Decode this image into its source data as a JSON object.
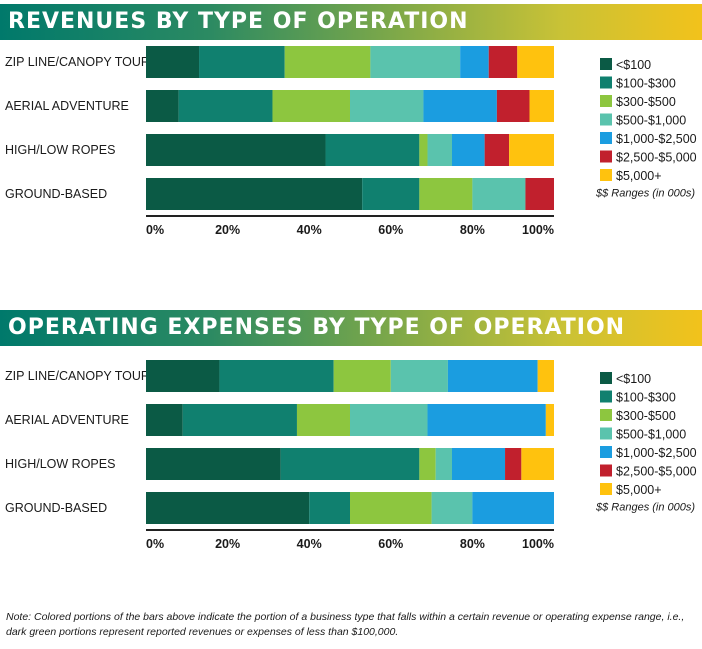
{
  "chart_data": [
    {
      "type": "bar",
      "orientation": "horizontal",
      "stacked": true,
      "title": "REVENUES BY TYPE OF OPERATION",
      "categories": [
        "ZIP LINE/CANOPY TOUR",
        "AERIAL ADVENTURE",
        "HIGH/LOW ROPES",
        "GROUND-BASED"
      ],
      "series": [
        {
          "name": "<$100",
          "color": "#0b5a45",
          "values": [
            13,
            8,
            44,
            53
          ]
        },
        {
          "name": "$100-$300",
          "color": "#10806f",
          "values": [
            21,
            23,
            23,
            14
          ]
        },
        {
          "name": "$300-$500",
          "color": "#8dc63f",
          "values": [
            21,
            19,
            2,
            13
          ]
        },
        {
          "name": "$500-$1,000",
          "color": "#5ac3ad",
          "values": [
            22,
            18,
            6,
            13
          ]
        },
        {
          "name": "$1,000-$2,500",
          "color": "#1b9de0",
          "values": [
            7,
            18,
            8,
            0
          ]
        },
        {
          "name": "$2,500-$5,000",
          "color": "#c1202d",
          "values": [
            7,
            8,
            6,
            7
          ]
        },
        {
          "name": "$5,000+",
          "color": "#ffc20e",
          "values": [
            9,
            6,
            11,
            0
          ]
        }
      ],
      "x_ticks": [
        "0%",
        "20%",
        "40%",
        "60%",
        "80%",
        "100%"
      ],
      "xlim": [
        0,
        100
      ],
      "legend_note": "$$ Ranges (in 000s)",
      "legend_position": "right"
    },
    {
      "type": "bar",
      "orientation": "horizontal",
      "stacked": true,
      "title": "OPERATING EXPENSES BY TYPE OF OPERATION",
      "categories": [
        "ZIP LINE/CANOPY TOUR",
        "AERIAL ADVENTURE",
        "HIGH/LOW ROPES",
        "GROUND-BASED"
      ],
      "series": [
        {
          "name": "<$100",
          "color": "#0b5a45",
          "values": [
            18,
            9,
            33,
            40
          ]
        },
        {
          "name": "$100-$300",
          "color": "#10806f",
          "values": [
            28,
            28,
            34,
            10
          ]
        },
        {
          "name": "$300-$500",
          "color": "#8dc63f",
          "values": [
            14,
            13,
            4,
            20
          ]
        },
        {
          "name": "$500-$1,000",
          "color": "#5ac3ad",
          "values": [
            14,
            19,
            4,
            10
          ]
        },
        {
          "name": "$1,000-$2,500",
          "color": "#1b9de0",
          "values": [
            22,
            29,
            13,
            20
          ]
        },
        {
          "name": "$2,500-$5,000",
          "color": "#c1202d",
          "values": [
            0,
            0,
            4,
            0
          ]
        },
        {
          "name": "$5,000+",
          "color": "#ffc20e",
          "values": [
            4,
            2,
            8,
            0
          ]
        }
      ],
      "x_ticks": [
        "0%",
        "20%",
        "40%",
        "60%",
        "80%",
        "100%"
      ],
      "xlim": [
        0,
        100
      ],
      "legend_note": "$$ Ranges (in 000s)",
      "legend_position": "right"
    }
  ],
  "note": "Note: Colored portions of the bars above indicate the portion of a business type that falls within a certain revenue or operating expense range, i.e., dark green portions represent reported revenues or expenses of less than $100,000."
}
